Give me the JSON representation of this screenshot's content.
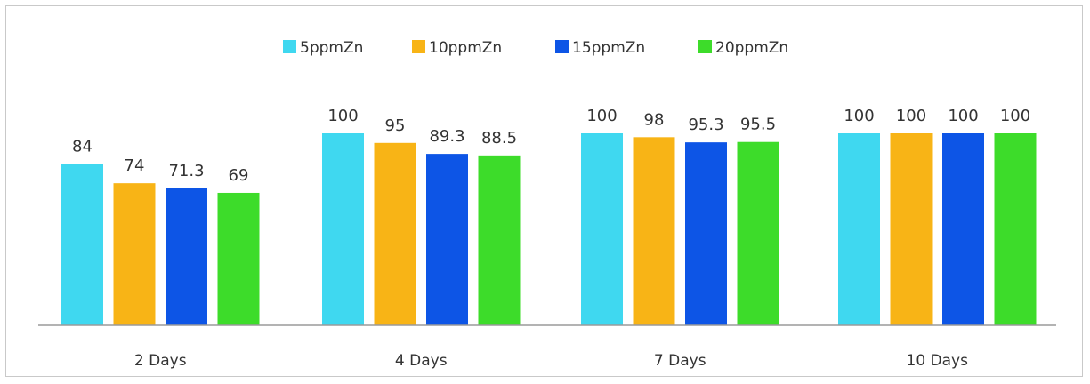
{
  "chart_data": {
    "type": "bar",
    "categories": [
      "2 Days",
      "4 Days",
      "7 Days",
      "10 Days"
    ],
    "series": [
      {
        "name": "5ppmZn",
        "color": "#3fd8f0",
        "values": [
          84,
          100,
          100,
          100
        ]
      },
      {
        "name": "10ppmZn",
        "color": "#f8b416",
        "values": [
          74,
          95,
          98,
          100
        ]
      },
      {
        "name": "15ppmZn",
        "color": "#0d55e6",
        "values": [
          71.3,
          89.3,
          95.3,
          100
        ]
      },
      {
        "name": "20ppmZn",
        "color": "#3ddc2a",
        "values": [
          69,
          88.5,
          95.5,
          100
        ]
      }
    ],
    "value_labels": [
      [
        "84",
        "100",
        "100",
        "100"
      ],
      [
        "74",
        "95",
        "98",
        "100"
      ],
      [
        "71.3",
        "89.3",
        "95.3",
        "100"
      ],
      [
        "69",
        "88.5",
        "95.5",
        "100"
      ]
    ],
    "title": "",
    "xlabel": "",
    "ylabel": "",
    "ylim": [
      0,
      100
    ],
    "grid": false,
    "legend_position": "top-center"
  }
}
